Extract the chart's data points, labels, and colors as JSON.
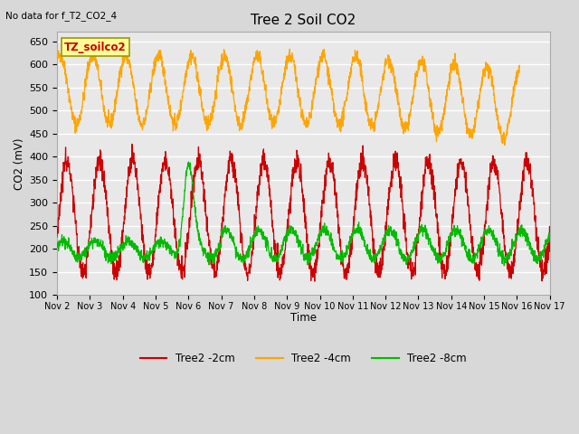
{
  "title": "Tree 2 Soil CO2",
  "no_data_text": "No data for f_T2_CO2_4",
  "xlabel": "Time",
  "ylabel": "CO2 (mV)",
  "ylim": [
    100,
    670
  ],
  "yticks": [
    100,
    150,
    200,
    250,
    300,
    350,
    400,
    450,
    500,
    550,
    600,
    650
  ],
  "xlim": [
    0,
    360
  ],
  "xtick_labels": [
    "Nov 2",
    "Nov 3",
    "Nov 4",
    "Nov 5",
    "Nov 6",
    "Nov 7",
    "Nov 8",
    "Nov 9",
    "Nov 10",
    "Nov 11",
    "Nov 12",
    "Nov 13",
    "Nov 14",
    "Nov 15",
    "Nov 16",
    "Nov 17"
  ],
  "xtick_positions": [
    0,
    24,
    48,
    72,
    96,
    120,
    144,
    168,
    192,
    216,
    240,
    264,
    288,
    312,
    336,
    360
  ],
  "bg_color": "#d8d8d8",
  "plot_bg_color": "#e8e8e8",
  "grid_color": "#ffffff",
  "series": [
    {
      "label": "Tree2 -2cm",
      "color": "#cc0000"
    },
    {
      "label": "Tree2 -4cm",
      "color": "#ffa500"
    },
    {
      "label": "Tree2 -8cm",
      "color": "#00bb00"
    }
  ],
  "legend_box": {
    "text": "TZ_soilco2",
    "bg_color": "#ffff99",
    "border_color": "#999900",
    "text_color": "#cc0000"
  },
  "figsize": [
    6.4,
    4.8
  ],
  "dpi": 100
}
